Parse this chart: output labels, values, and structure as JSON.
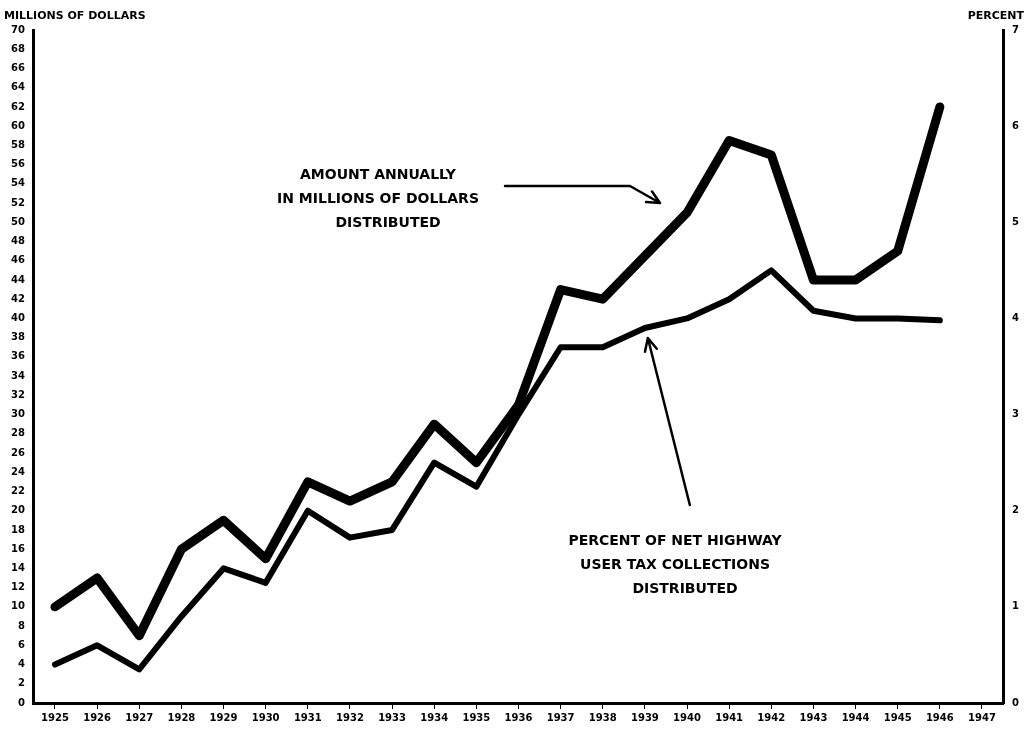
{
  "chart_data": {
    "type": "line",
    "ylabel": "MILLIONS OF DOLLARS",
    "y2label": "PERCENT",
    "categories": [
      "1925",
      "1926",
      "1927",
      "1928",
      "1929",
      "1930",
      "1931",
      "1932",
      "1933",
      "1934",
      "1935",
      "1936",
      "1937",
      "1938",
      "1939",
      "1940",
      "1941",
      "1942",
      "1943",
      "1944",
      "1945",
      "1946",
      "1947"
    ],
    "series": [
      {
        "color": "#000000",
        "values": [
          10,
          13,
          7,
          16,
          19,
          15,
          23,
          21,
          23,
          29,
          25,
          31,
          43,
          42,
          46.5,
          51,
          58.5,
          57,
          44,
          44,
          47,
          62,
          null
        ]
      },
      {
        "color": "#000000",
        "axis": "y2",
        "values": [
          0.4,
          0.6,
          0.35,
          0.9,
          1.4,
          1.25,
          2.0,
          1.72,
          1.8,
          2.5,
          2.25,
          3.0,
          3.7,
          3.7,
          3.9,
          4.0,
          4.2,
          4.5,
          4.08,
          4.0,
          4.0,
          3.98,
          null
        ]
      }
    ],
    "ylim": [
      0,
      70
    ],
    "yticks": [
      0,
      2,
      4,
      6,
      8,
      10,
      12,
      14,
      16,
      18,
      20,
      22,
      24,
      26,
      28,
      30,
      32,
      34,
      36,
      38,
      40,
      42,
      44,
      46,
      48,
      50,
      52,
      54,
      56,
      58,
      60,
      62,
      64,
      66,
      68,
      70
    ],
    "y2lim": [
      0,
      7
    ],
    "y2ticks": [
      0,
      1,
      2,
      3,
      4,
      5,
      6,
      7
    ],
    "annotations": [
      "AMOUNT ANNUALLY\nIN MILLIONS OF DOLLARS\nDISTRIBUTED",
      "PERCENT OF NET HIGHWAY\nUSER TAX COLLECTIONS\nDISTRIBUTED"
    ],
    "grid": false,
    "legend": false,
    "marker": "none",
    "line_style": "solid"
  }
}
